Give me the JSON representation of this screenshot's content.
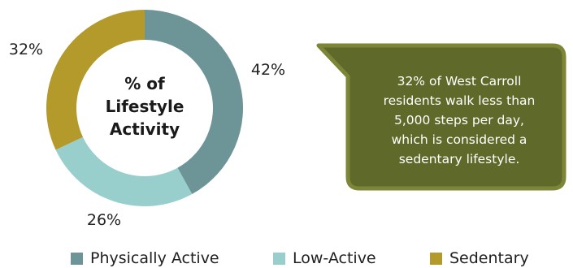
{
  "chart_data": {
    "type": "pie",
    "variant": "donut",
    "title": "% of Lifestyle Activity",
    "title_lines": [
      "% of",
      "Lifestyle",
      "Activity"
    ],
    "categories": [
      "Physically Active",
      "Low-Active",
      "Sedentary"
    ],
    "values": [
      42,
      26,
      32
    ],
    "labels": [
      "42%",
      "26%",
      "32%"
    ],
    "colors": [
      "#6d9597",
      "#98cfcd",
      "#b39a2b"
    ],
    "legend_position": "bottom"
  },
  "callout": {
    "lines": [
      "32% of West Carroll",
      "residents walk less than",
      "5,000 steps per day,",
      "which is considered a",
      "sedentary lifestyle."
    ],
    "fill": "#5f6a2a",
    "border": "#7d8636"
  }
}
